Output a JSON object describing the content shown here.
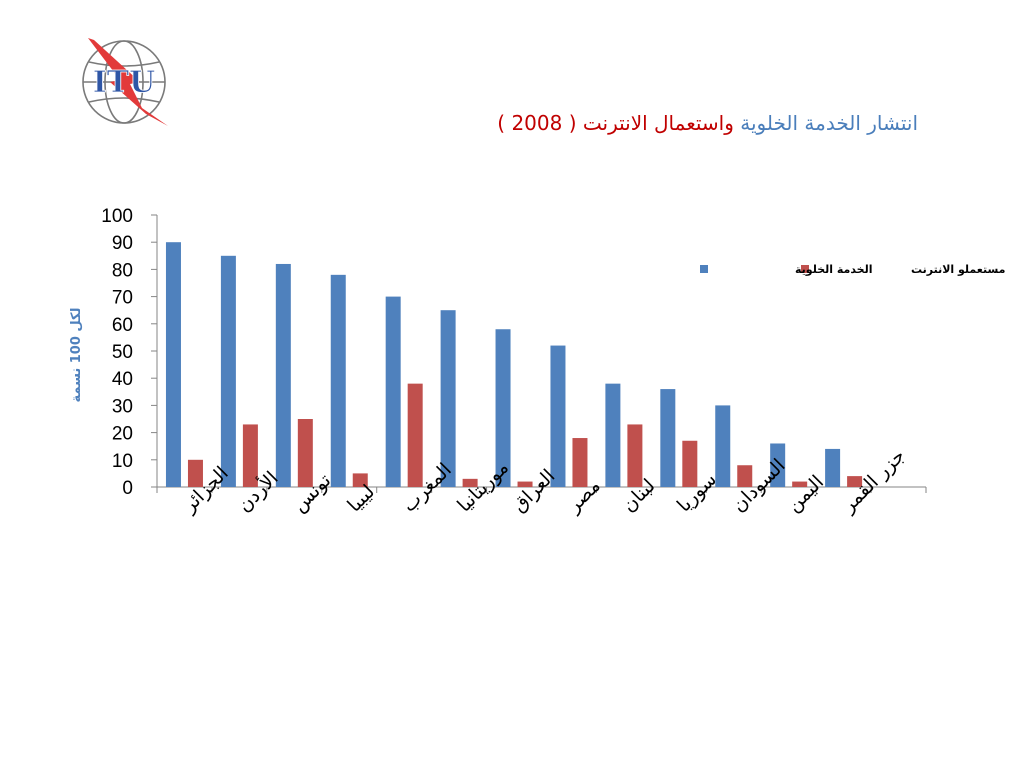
{
  "title": {
    "part1": "انتشار الخدمة الخلوية",
    "part2": "واستعمال الانترنت ( 2008 )",
    "part1_color": "#4a7ebb",
    "part2_color": "#c00000"
  },
  "logo": {
    "text": "ITU"
  },
  "chart_data": {
    "type": "bar",
    "categories": [
      "الجزائر",
      "الأردن",
      "تونس",
      "ليبيا",
      "المغرب",
      "موريتانيا",
      "العراق",
      "مصر",
      "لبنان",
      "سوريا",
      "السودان",
      "اليمن",
      "جزر القمر",
      ""
    ],
    "series": [
      {
        "name": "الخدمة الخلوية",
        "color": "#4f81bd",
        "values": [
          90,
          85,
          82,
          78,
          70,
          65,
          58,
          52,
          38,
          36,
          30,
          16,
          14,
          null
        ]
      },
      {
        "name": "مستعملو الانترنت",
        "color": "#c0504d",
        "values": [
          10,
          23,
          25,
          5,
          38,
          3,
          2,
          18,
          23,
          17,
          8,
          2,
          4,
          null
        ]
      }
    ],
    "ylabel": "لكل 100 نسمة",
    "ylabel_color": "#4f81bd",
    "ylim": [
      0,
      100
    ],
    "yticks": [
      0,
      10,
      20,
      30,
      40,
      50,
      60,
      70,
      80,
      90,
      100
    ],
    "legend": "top-right",
    "grid": false
  }
}
